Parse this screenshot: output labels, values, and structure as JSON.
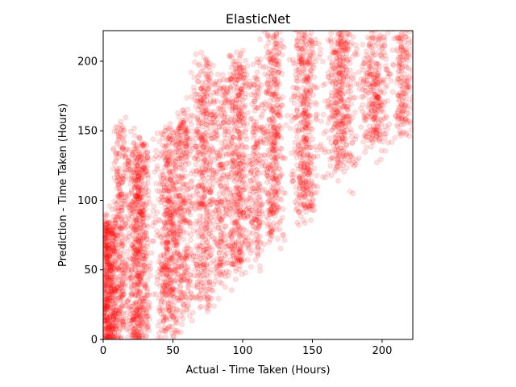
{
  "chart_data": {
    "type": "scatter",
    "title": "ElasticNet",
    "xlabel": "Actual - Time Taken (Hours)",
    "ylabel": "Prediction - Time Taken (Hours)",
    "xlim": [
      0,
      222
    ],
    "ylim": [
      0,
      222
    ],
    "xticks": [
      0,
      50,
      100,
      150,
      200
    ],
    "yticks": [
      0,
      50,
      100,
      150,
      200
    ],
    "grid": false,
    "legend": "none",
    "marker_color": "#ff0000",
    "marker_alpha": 0.12,
    "point_clusters": [
      {
        "x_center": 4,
        "x_spread": 6,
        "y_min": 0,
        "y_max": 85,
        "count": 520
      },
      {
        "x_center": 12,
        "x_spread": 4,
        "y_min": 0,
        "y_max": 150,
        "count": 260
      },
      {
        "x_center": 25,
        "x_spread": 7,
        "y_min": 0,
        "y_max": 140,
        "count": 700
      },
      {
        "x_center": 47,
        "x_spread": 7,
        "y_min": 5,
        "y_max": 150,
        "count": 520
      },
      {
        "x_center": 58,
        "x_spread": 6,
        "y_min": 20,
        "y_max": 165,
        "count": 300
      },
      {
        "x_center": 72,
        "x_spread": 7,
        "y_min": 25,
        "y_max": 195,
        "count": 480
      },
      {
        "x_center": 85,
        "x_spread": 6,
        "y_min": 40,
        "y_max": 185,
        "count": 260
      },
      {
        "x_center": 97,
        "x_spread": 6,
        "y_min": 50,
        "y_max": 200,
        "count": 460
      },
      {
        "x_center": 110,
        "x_spread": 5,
        "y_min": 60,
        "y_max": 195,
        "count": 220
      },
      {
        "x_center": 122,
        "x_spread": 6,
        "y_min": 75,
        "y_max": 222,
        "count": 400
      },
      {
        "x_center": 145,
        "x_spread": 7,
        "y_min": 90,
        "y_max": 222,
        "count": 460
      },
      {
        "x_center": 170,
        "x_spread": 8,
        "y_min": 120,
        "y_max": 222,
        "count": 420
      },
      {
        "x_center": 195,
        "x_spread": 8,
        "y_min": 140,
        "y_max": 222,
        "count": 300
      },
      {
        "x_center": 215,
        "x_spread": 6,
        "y_min": 150,
        "y_max": 222,
        "count": 180
      }
    ]
  }
}
